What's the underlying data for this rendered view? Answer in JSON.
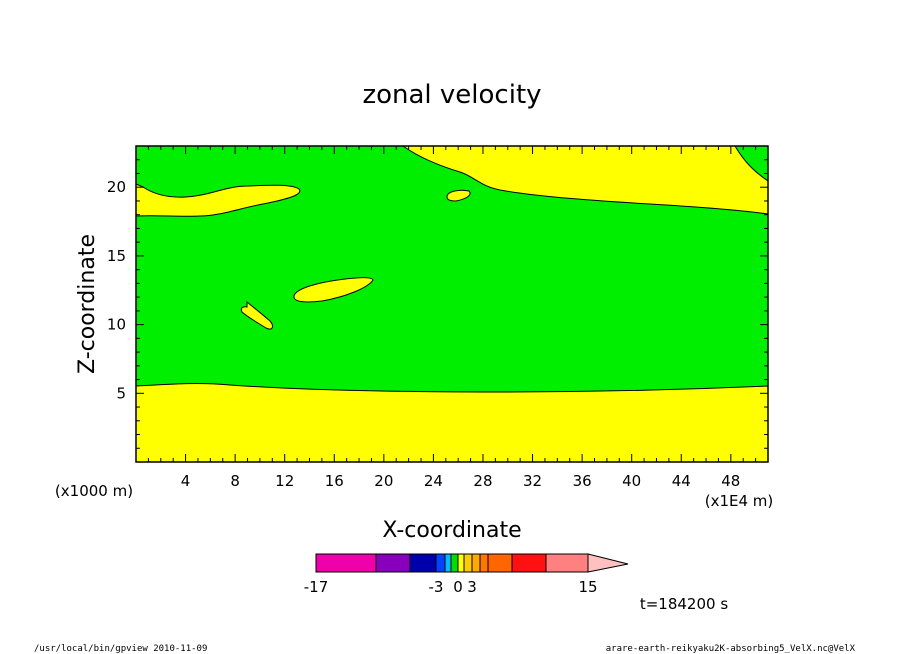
{
  "chart_data": {
    "type": "contour",
    "title": "zonal velocity",
    "xlabel": "X-coordinate",
    "ylabel": "Z-coordinate",
    "x_unit_label": "(x1E4 m)",
    "y_unit_label": "(x1000 m)",
    "xlim": [
      0,
      51
    ],
    "ylim": [
      0,
      23
    ],
    "x_ticks": [
      "4",
      "8",
      "12",
      "16",
      "20",
      "24",
      "28",
      "32",
      "36",
      "40",
      "44",
      "48"
    ],
    "y_ticks": [
      "5",
      "10",
      "15",
      "20"
    ],
    "regions": [
      {
        "name": "yellow",
        "color": "#ffff00"
      },
      {
        "name": "green",
        "color": "#00ee00"
      }
    ],
    "colorbar": {
      "tick_labels": [
        "-17",
        "-3",
        "0",
        "3",
        "15"
      ],
      "colors": [
        "#ee00aa",
        "#8800bb",
        "#0000aa",
        "#0044ff",
        "#00bbff",
        "#00dd00",
        "#ffff00",
        "#ffcc00",
        "#ffaa00",
        "#ff7700",
        "#ff6600",
        "#ff1111",
        "#ff8080",
        "#ffc0c0"
      ]
    },
    "time_label": "t=184200 s"
  },
  "footer": {
    "left": "/usr/local/bin/gpview   2010-11-09",
    "right": "arare-earth-reikyaku2K-absorbing5_VelX.nc@VelX"
  }
}
